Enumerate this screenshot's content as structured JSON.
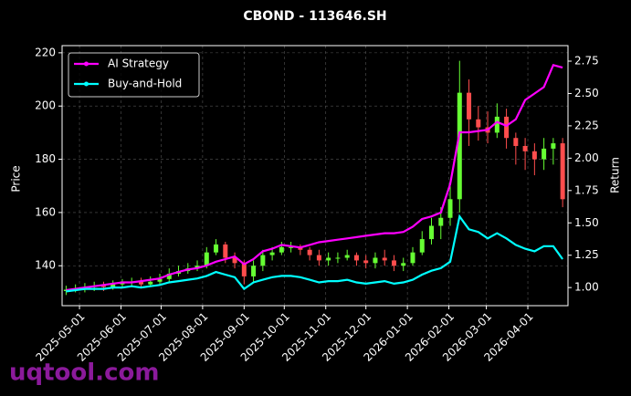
{
  "chart_data": {
    "type": "candlestick",
    "title": "CBOND - 113646.SH",
    "ylabel": "Price",
    "y2label": "Return",
    "watermark": "uqtool.com",
    "x": [
      "2025-04-21",
      "2025-04-28",
      "2025-05-05",
      "2025-05-12",
      "2025-05-19",
      "2025-05-26",
      "2025-06-02",
      "2025-06-09",
      "2025-06-16",
      "2025-06-23",
      "2025-06-30",
      "2025-07-07",
      "2025-07-14",
      "2025-07-21",
      "2025-07-28",
      "2025-08-04",
      "2025-08-11",
      "2025-08-18",
      "2025-08-25",
      "2025-09-01",
      "2025-09-08",
      "2025-09-15",
      "2025-09-22",
      "2025-09-29",
      "2025-10-06",
      "2025-10-13",
      "2025-10-20",
      "2025-10-27",
      "2025-11-03",
      "2025-11-10",
      "2025-11-17",
      "2025-11-24",
      "2025-12-01",
      "2025-12-08",
      "2025-12-15",
      "2025-12-22",
      "2025-12-29",
      "2026-01-05",
      "2026-01-12",
      "2026-01-19",
      "2026-01-26",
      "2026-02-02",
      "2026-02-09",
      "2026-02-16",
      "2026-02-23",
      "2026-03-02",
      "2026-03-09",
      "2026-03-16",
      "2026-03-23",
      "2026-03-30",
      "2026-04-06",
      "2026-04-13",
      "2026-04-20",
      "2026-04-27"
    ],
    "open": [
      130.5,
      131,
      131.5,
      132,
      132.5,
      132,
      133,
      133.5,
      134,
      133,
      134,
      135,
      137,
      138,
      139,
      140,
      145,
      148,
      143,
      141,
      136,
      140,
      144,
      145,
      147,
      147,
      146,
      144,
      142,
      143,
      143,
      144,
      142,
      141,
      143,
      142,
      140,
      141,
      145,
      150,
      155,
      158,
      165,
      205,
      195,
      192,
      190,
      196,
      188,
      185,
      183,
      180,
      184,
      186
    ],
    "high": [
      132.5,
      133,
      133.5,
      134,
      134,
      134.5,
      135,
      135.5,
      135.5,
      136,
      137,
      139,
      140,
      141,
      142,
      147,
      150,
      149,
      145,
      142,
      142,
      146,
      147,
      149,
      149,
      148,
      147,
      146,
      145,
      145,
      146,
      145,
      144,
      145,
      146,
      144,
      143,
      147,
      153,
      158,
      162,
      170,
      217,
      210,
      200,
      198,
      201,
      199,
      190,
      188,
      186,
      188,
      188,
      188
    ],
    "low": [
      129,
      130,
      130,
      130.5,
      130.5,
      131,
      131.5,
      132,
      131.5,
      132,
      133,
      134,
      136,
      137,
      138,
      139,
      144,
      141,
      139,
      133,
      134,
      138,
      142,
      144,
      145,
      144,
      142,
      140,
      140,
      141,
      142,
      140,
      139,
      139,
      140,
      138,
      138,
      140,
      144,
      148,
      150,
      155,
      160,
      185,
      187,
      186,
      188,
      184,
      178,
      176,
      174,
      176,
      178,
      162
    ],
    "close": [
      131,
      131.5,
      132,
      132.5,
      132,
      133,
      133.5,
      134,
      133,
      134,
      135,
      137,
      138,
      139,
      140,
      145,
      148,
      143,
      141,
      136,
      140,
      144,
      145,
      147,
      147,
      146,
      144,
      142,
      143,
      143,
      144,
      142,
      141,
      143,
      142,
      140,
      141,
      145,
      150,
      155,
      158,
      165,
      205,
      195,
      192,
      190,
      196,
      188,
      185,
      183,
      180,
      184,
      186,
      165
    ],
    "up_color": "#66ff33",
    "down_color": "#ff4d4d",
    "series": [
      {
        "name": "AI Strategy",
        "color": "#ff00ff",
        "axis": "y2",
        "values": [
          0.98,
          0.99,
          1.0,
          1.01,
          1.02,
          1.03,
          1.04,
          1.04,
          1.05,
          1.06,
          1.07,
          1.1,
          1.12,
          1.14,
          1.15,
          1.17,
          1.2,
          1.22,
          1.24,
          1.18,
          1.22,
          1.28,
          1.3,
          1.33,
          1.32,
          1.31,
          1.33,
          1.35,
          1.36,
          1.37,
          1.38,
          1.39,
          1.4,
          1.41,
          1.42,
          1.42,
          1.43,
          1.47,
          1.53,
          1.55,
          1.58,
          1.8,
          2.2,
          2.2,
          2.21,
          2.22,
          2.28,
          2.25,
          2.3,
          2.45,
          2.5,
          2.55,
          2.72,
          2.7
        ]
      },
      {
        "name": "Buy-and-Hold",
        "color": "#00ffff",
        "axis": "y2",
        "values": [
          0.97,
          0.98,
          0.99,
          0.99,
          0.99,
          1.0,
          1.0,
          1.01,
          1.0,
          1.01,
          1.02,
          1.04,
          1.05,
          1.06,
          1.07,
          1.09,
          1.12,
          1.1,
          1.08,
          0.99,
          1.04,
          1.06,
          1.08,
          1.09,
          1.09,
          1.08,
          1.06,
          1.04,
          1.05,
          1.05,
          1.06,
          1.04,
          1.03,
          1.04,
          1.05,
          1.03,
          1.04,
          1.06,
          1.1,
          1.13,
          1.15,
          1.2,
          1.55,
          1.45,
          1.43,
          1.38,
          1.42,
          1.38,
          1.33,
          1.3,
          1.28,
          1.32,
          1.32,
          1.22
        ]
      }
    ],
    "xlim": [
      "2025-04-18",
      "2026-05-01"
    ],
    "xticks": [
      "2025-05-01",
      "2025-06-01",
      "2025-07-01",
      "2025-08-01",
      "2025-09-01",
      "2025-10-01",
      "2025-11-01",
      "2025-12-01",
      "2026-01-01",
      "2026-02-01",
      "2026-03-01",
      "2026-04-01"
    ],
    "ylim": [
      125,
      222.7
    ],
    "yticks": [
      140,
      160,
      180,
      200,
      220
    ],
    "y2lim": [
      0.86,
      2.87
    ],
    "y2ticks": [
      {
        "value": 1.0,
        "label": "1.00"
      },
      1.25,
      {
        "value": 1.5,
        "label": "1.50"
      },
      1.75,
      {
        "value": 2.0,
        "label": "2.00"
      },
      2.25,
      {
        "value": 2.5,
        "label": "2.50"
      },
      2.75
    ],
    "grid": true,
    "legend": "upper left"
  }
}
